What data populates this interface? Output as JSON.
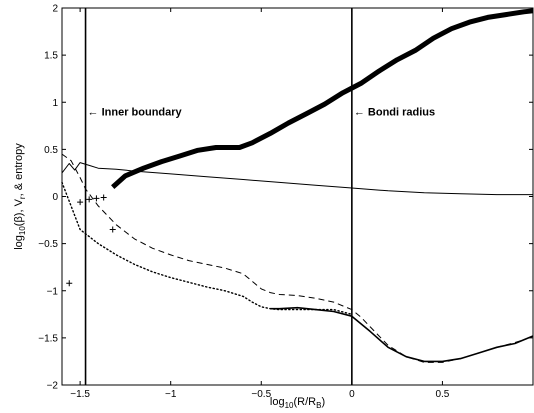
{
  "chart_data": {
    "type": "line",
    "xlabel": "log10(R/RB)",
    "xlabel_parts": {
      "pre": "log",
      "sub1": "10",
      "mid": "(R/R",
      "sub2": "B",
      "post": ")"
    },
    "ylabel": "log10(β), Vr, & entropy",
    "ylabel_parts": {
      "pre": "log",
      "sub1": "10",
      "mid": "(β), V",
      "sub2": "r",
      "post": ", & entropy"
    },
    "xlim": [
      -1.6,
      1.0
    ],
    "ylim": [
      -2,
      2
    ],
    "xticks": [
      {
        "value": -1.5,
        "label": "−1.5"
      },
      {
        "value": -1.0,
        "label": "−1"
      },
      {
        "value": -0.5,
        "label": "−0.5"
      },
      {
        "value": 0.0,
        "label": "0"
      },
      {
        "value": 0.5,
        "label": "0.5"
      }
    ],
    "yticks": [
      {
        "value": -2.0,
        "label": "−2"
      },
      {
        "value": -1.5,
        "label": "−1.5"
      },
      {
        "value": -1.0,
        "label": "−1"
      },
      {
        "value": -0.5,
        "label": "−0.5"
      },
      {
        "value": 0.0,
        "label": "0"
      },
      {
        "value": 0.5,
        "label": "0.5"
      },
      {
        "value": 1.0,
        "label": "1"
      },
      {
        "value": 1.5,
        "label": "1.5"
      },
      {
        "value": 2.0,
        "label": "2"
      }
    ],
    "grid": false,
    "vlines": [
      {
        "x": -1.47,
        "label": "Inner boundary",
        "arrow": "←",
        "label_y": 0.9
      },
      {
        "x": 0.0,
        "label": "Bondi radius",
        "arrow": "←",
        "label_y": 0.9
      }
    ],
    "series": [
      {
        "style": "plus-markers",
        "x": [
          -1.56,
          -1.5,
          -1.45,
          -1.41,
          -1.37,
          -1.32
        ],
        "y": [
          -0.92,
          -0.06,
          -0.03,
          -0.02,
          -0.01,
          -0.35
        ]
      },
      {
        "style": "solid-thick",
        "x": [
          -1.32,
          -1.25,
          -1.15,
          -1.05,
          -0.95,
          -0.85,
          -0.75,
          -0.62,
          -0.55,
          -0.45,
          -0.35,
          -0.25,
          -0.15,
          -0.05,
          0.0,
          0.05,
          0.15,
          0.25,
          0.35,
          0.45,
          0.55,
          0.65,
          0.75,
          0.85,
          0.95,
          1.0
        ],
        "y": [
          0.1,
          0.22,
          0.3,
          0.37,
          0.43,
          0.49,
          0.52,
          0.52,
          0.57,
          0.67,
          0.78,
          0.88,
          0.98,
          1.1,
          1.15,
          1.2,
          1.33,
          1.45,
          1.55,
          1.68,
          1.78,
          1.85,
          1.9,
          1.93,
          1.96,
          1.97
        ]
      },
      {
        "style": "solid-thin",
        "x": [
          -1.6,
          -1.56,
          -1.53,
          -1.5,
          -1.45,
          -1.4,
          -1.3,
          -1.2,
          -1.0,
          -0.8,
          -0.6,
          -0.4,
          -0.2,
          0.0,
          0.2,
          0.4,
          0.6,
          0.8,
          1.0
        ],
        "y": [
          0.25,
          0.35,
          0.28,
          0.36,
          0.33,
          0.3,
          0.29,
          0.27,
          0.24,
          0.21,
          0.18,
          0.15,
          0.12,
          0.09,
          0.06,
          0.04,
          0.03,
          0.02,
          0.02
        ]
      },
      {
        "style": "dashed",
        "x": [
          -1.6,
          -1.55,
          -1.5,
          -1.47,
          -1.4,
          -1.3,
          -1.2,
          -1.1,
          -1.0,
          -0.9,
          -0.8,
          -0.7,
          -0.6,
          -0.55,
          -0.5,
          -0.45,
          -0.4,
          -0.3,
          -0.2,
          -0.1,
          0.0,
          0.05,
          0.1,
          0.2,
          0.3,
          0.4,
          0.5,
          0.6,
          0.7,
          0.8,
          0.9,
          0.95,
          1.0
        ],
        "y": [
          0.45,
          0.38,
          0.2,
          0.08,
          -0.1,
          -0.3,
          -0.45,
          -0.55,
          -0.62,
          -0.68,
          -0.72,
          -0.76,
          -0.82,
          -0.9,
          -0.98,
          -1.02,
          -1.04,
          -1.05,
          -1.08,
          -1.12,
          -1.2,
          -1.28,
          -1.38,
          -1.58,
          -1.7,
          -1.76,
          -1.76,
          -1.72,
          -1.66,
          -1.6,
          -1.55,
          -1.52,
          -1.48
        ]
      },
      {
        "style": "dotted",
        "x": [
          -1.6,
          -1.5,
          -1.4,
          -1.3,
          -1.2,
          -1.1,
          -1.0,
          -0.9,
          -0.8,
          -0.7,
          -0.6,
          -0.55,
          -0.5,
          -0.45,
          -0.4,
          -0.35,
          -0.3,
          -0.2,
          -0.1,
          0.0
        ],
        "y": [
          0.15,
          -0.35,
          -0.5,
          -0.62,
          -0.72,
          -0.8,
          -0.86,
          -0.91,
          -0.96,
          -1.0,
          -1.06,
          -1.12,
          -1.17,
          -1.19,
          -1.2,
          -1.2,
          -1.2,
          -1.2,
          -1.2,
          -1.25
        ]
      },
      {
        "style": "solid",
        "x": [
          -0.45,
          -0.4,
          -0.3,
          -0.2,
          -0.1,
          0.0,
          0.05,
          0.1,
          0.2,
          0.3,
          0.4,
          0.5,
          0.6,
          0.7,
          0.8,
          0.9,
          0.95,
          1.0
        ],
        "y": [
          -1.19,
          -1.19,
          -1.18,
          -1.2,
          -1.22,
          -1.27,
          -1.35,
          -1.43,
          -1.6,
          -1.7,
          -1.75,
          -1.75,
          -1.72,
          -1.66,
          -1.6,
          -1.56,
          -1.52,
          -1.48
        ]
      }
    ]
  }
}
